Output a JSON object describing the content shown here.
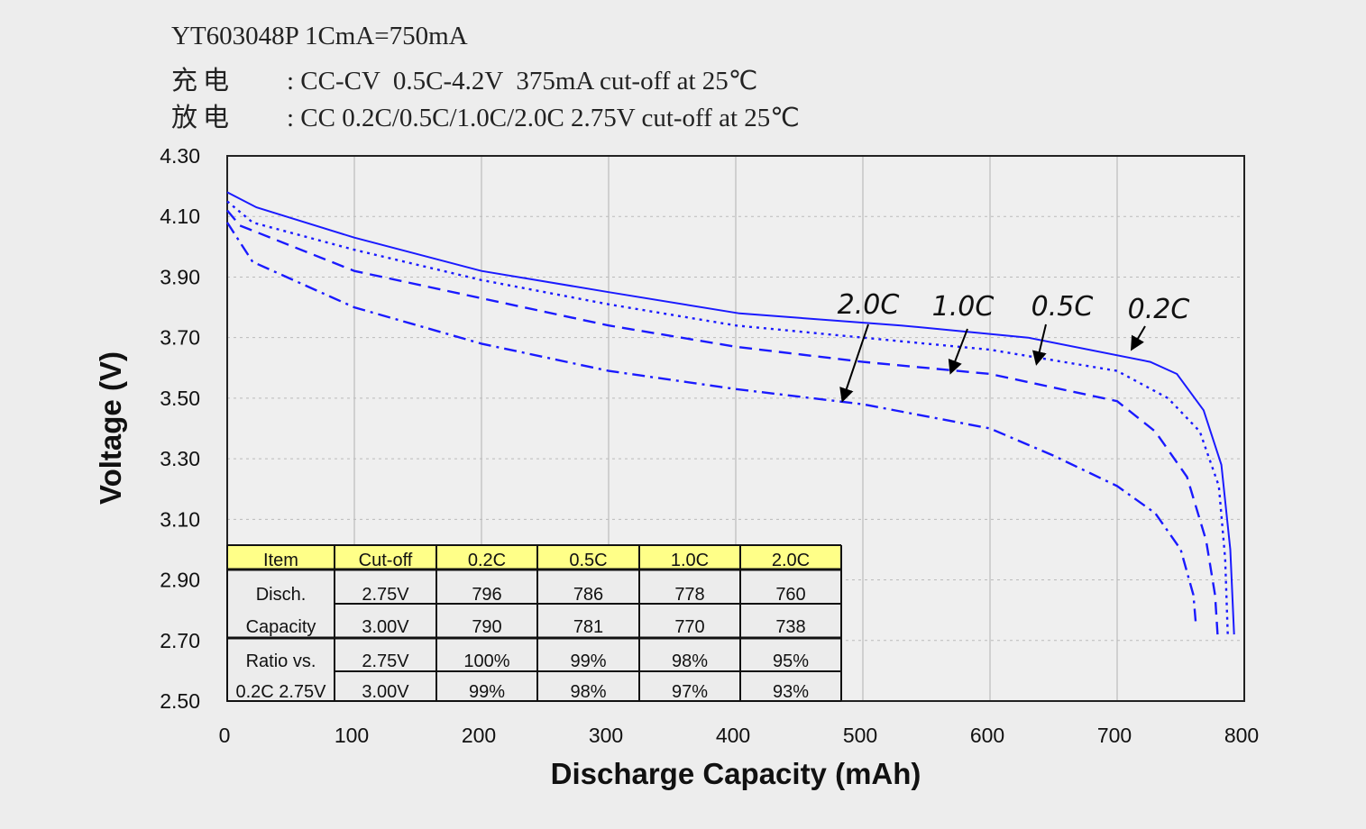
{
  "header": {
    "line1": "YT603048P 1CmA=750mA",
    "charge_label": "充电",
    "charge_text": ": CC-CV  0.5C-4.2V  375mA cut-off at 25℃",
    "discharge_label": "放电",
    "discharge_text": ": CC 0.2C/0.5C/1.0C/2.0C 2.75V cut-off at 25℃"
  },
  "chart_data": {
    "type": "line",
    "title": "",
    "xlabel": "Discharge Capacity (mAh)",
    "ylabel": "Voltage (V)",
    "xlim": [
      0,
      800
    ],
    "ylim": [
      2.5,
      4.3
    ],
    "xticks": [
      "0",
      "100",
      "200",
      "300",
      "400",
      "500",
      "600",
      "700",
      "800"
    ],
    "yticks": [
      "4.30",
      "4.10",
      "3.90",
      "3.70",
      "3.50",
      "3.30",
      "3.10",
      "2.90",
      "2.70",
      "2.50"
    ],
    "grid": true,
    "line_color": "#1a1aff",
    "series": [
      {
        "name": "0.2C",
        "style": "solid",
        "x": [
          0,
          23,
          100,
          200,
          300,
          403,
          530,
          630,
          726,
          747,
          768,
          782,
          789,
          792
        ],
        "y": [
          4.18,
          4.13,
          4.03,
          3.92,
          3.85,
          3.78,
          3.74,
          3.7,
          3.62,
          3.58,
          3.46,
          3.28,
          3.0,
          2.72
        ]
      },
      {
        "name": "0.5C",
        "style": "dotted",
        "x": [
          0,
          20,
          100,
          200,
          300,
          400,
          500,
          600,
          700,
          740,
          765,
          780,
          785,
          787
        ],
        "y": [
          4.15,
          4.08,
          3.99,
          3.89,
          3.81,
          3.74,
          3.7,
          3.66,
          3.59,
          3.5,
          3.39,
          3.21,
          2.97,
          2.72
        ]
      },
      {
        "name": "1.0C",
        "style": "dashed",
        "x": [
          0,
          10,
          100,
          200,
          300,
          400,
          500,
          600,
          700,
          730,
          755,
          770,
          777,
          779
        ],
        "y": [
          4.12,
          4.07,
          3.92,
          3.83,
          3.74,
          3.67,
          3.62,
          3.58,
          3.49,
          3.39,
          3.24,
          3.03,
          2.85,
          2.72
        ]
      },
      {
        "name": "2.0C",
        "style": "dashdot",
        "x": [
          0,
          20,
          100,
          200,
          300,
          400,
          500,
          600,
          650,
          700,
          730,
          750,
          760,
          762
        ],
        "y": [
          4.08,
          3.95,
          3.8,
          3.68,
          3.59,
          3.53,
          3.48,
          3.4,
          3.31,
          3.21,
          3.12,
          3.0,
          2.85,
          2.75
        ]
      }
    ],
    "annotations": [
      "2.0C",
      "1.0C",
      "0.5C",
      "0.2C"
    ],
    "table": {
      "header": [
        "Item",
        "Cut-off",
        "0.2C",
        "0.5C",
        "1.0C",
        "2.0C"
      ],
      "header_color": "#ffff88",
      "rows": [
        [
          "Disch.",
          "2.75V",
          "796",
          "786",
          "778",
          "760"
        ],
        [
          "Capacity",
          "3.00V",
          "790",
          "781",
          "770",
          "738"
        ],
        [
          "Ratio vs.",
          "2.75V",
          "100%",
          "99%",
          "98%",
          "95%"
        ],
        [
          "0.2C 2.75V",
          "3.00V",
          "99%",
          "98%",
          "97%",
          "93%"
        ]
      ]
    }
  }
}
